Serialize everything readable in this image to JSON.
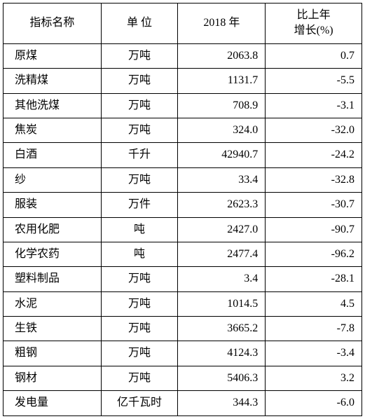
{
  "table": {
    "type": "table",
    "background_color": "#ffffff",
    "border_color": "#000000",
    "text_color": "#000000",
    "font_size": 16,
    "columns": [
      {
        "key": "name",
        "label": "指标名称",
        "width": 140,
        "align": "left"
      },
      {
        "key": "unit",
        "label": "单 位",
        "width": 110,
        "align": "center"
      },
      {
        "key": "year",
        "label": "2018 年",
        "width": 125,
        "align": "right"
      },
      {
        "key": "growth",
        "label": "比上年\n增长(%)",
        "width": 138,
        "align": "right"
      }
    ],
    "header_growth_line1": "比上年",
    "header_growth_line2": "增长(%)",
    "rows": [
      {
        "name": "原煤",
        "unit": "万吨",
        "year": "2063.8",
        "growth": "0.7"
      },
      {
        "name": "洗精煤",
        "unit": "万吨",
        "year": "1131.7",
        "growth": "-5.5"
      },
      {
        "name": "其他洗煤",
        "unit": "万吨",
        "year": "708.9",
        "growth": "-3.1"
      },
      {
        "name": "焦炭",
        "unit": "万吨",
        "year": "324.0",
        "growth": "-32.0"
      },
      {
        "name": "白酒",
        "unit": "千升",
        "year": "42940.7",
        "growth": "-24.2"
      },
      {
        "name": "纱",
        "unit": "万吨",
        "year": "33.4",
        "growth": "-32.8"
      },
      {
        "name": "服装",
        "unit": "万件",
        "year": "2623.3",
        "growth": "-30.7"
      },
      {
        "name": "农用化肥",
        "unit": "吨",
        "year": "2427.0",
        "growth": "-90.7"
      },
      {
        "name": "化学农药",
        "unit": "吨",
        "year": "2477.4",
        "growth": "-96.2"
      },
      {
        "name": "塑料制品",
        "unit": "万吨",
        "year": "3.4",
        "growth": "-28.1"
      },
      {
        "name": "水泥",
        "unit": "万吨",
        "year": "1014.5",
        "growth": "4.5"
      },
      {
        "name": "生铁",
        "unit": "万吨",
        "year": "3665.2",
        "growth": "-7.8"
      },
      {
        "name": "粗钢",
        "unit": "万吨",
        "year": "4124.3",
        "growth": "-3.4"
      },
      {
        "name": "钢材",
        "unit": "万吨",
        "year": "5406.3",
        "growth": "3.2"
      },
      {
        "name": "发电量",
        "unit": "亿千瓦时",
        "year": "344.3",
        "growth": "-6.0"
      }
    ]
  }
}
